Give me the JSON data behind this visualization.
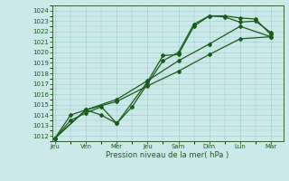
{
  "title": "",
  "xlabel": "Pression niveau de la mer( hPa )",
  "ylabel": "",
  "background_color": "#cce8e8",
  "grid_color": "#99cccc",
  "line_color": "#1a5c1a",
  "spine_color": "#336633",
  "ylim": [
    1011.5,
    1024.5
  ],
  "yticks": [
    1012,
    1013,
    1014,
    1015,
    1016,
    1017,
    1018,
    1019,
    1020,
    1021,
    1022,
    1023,
    1024
  ],
  "xtick_labels": [
    "Jeu",
    "Ven",
    "Mer",
    "Jeu",
    "Sam",
    "Dim",
    "Lun",
    "Mar"
  ],
  "xtick_positions": [
    0,
    1,
    2,
    3,
    4,
    5,
    6,
    7
  ],
  "xlim": [
    -0.1,
    7.4
  ],
  "line1_x": [
    0,
    0.5,
    1.0,
    1.5,
    2.0,
    2.5,
    3.0,
    3.5,
    4.0,
    4.5,
    5.0,
    5.5,
    6.0,
    6.5,
    7.0
  ],
  "line1_y": [
    1011.8,
    1013.5,
    1014.2,
    1014.8,
    1013.2,
    1014.8,
    1017.0,
    1019.2,
    1020.0,
    1022.7,
    1023.5,
    1023.5,
    1023.3,
    1023.2,
    1021.7
  ],
  "line2_x": [
    0,
    0.5,
    1.0,
    1.5,
    2.0,
    3.0,
    3.5,
    4.0,
    4.5,
    5.0,
    5.5,
    6.0,
    6.5,
    7.0
  ],
  "line2_y": [
    1011.8,
    1014.0,
    1014.5,
    1014.0,
    1013.2,
    1017.2,
    1019.7,
    1019.8,
    1022.5,
    1023.5,
    1023.4,
    1022.9,
    1023.0,
    1021.9
  ],
  "line3_x": [
    0,
    1,
    2,
    3,
    4,
    5,
    6,
    7
  ],
  "line3_y": [
    1011.8,
    1014.5,
    1015.3,
    1016.8,
    1018.2,
    1019.8,
    1021.3,
    1021.5
  ],
  "line4_x": [
    0,
    1,
    2,
    3,
    4,
    5,
    6,
    7
  ],
  "line4_y": [
    1011.8,
    1014.5,
    1015.5,
    1017.3,
    1019.2,
    1020.8,
    1022.5,
    1021.5
  ],
  "marker": "D",
  "markersize": 2.0,
  "linewidth": 0.9,
  "tick_fontsize": 5.0,
  "xlabel_fontsize": 6.0
}
